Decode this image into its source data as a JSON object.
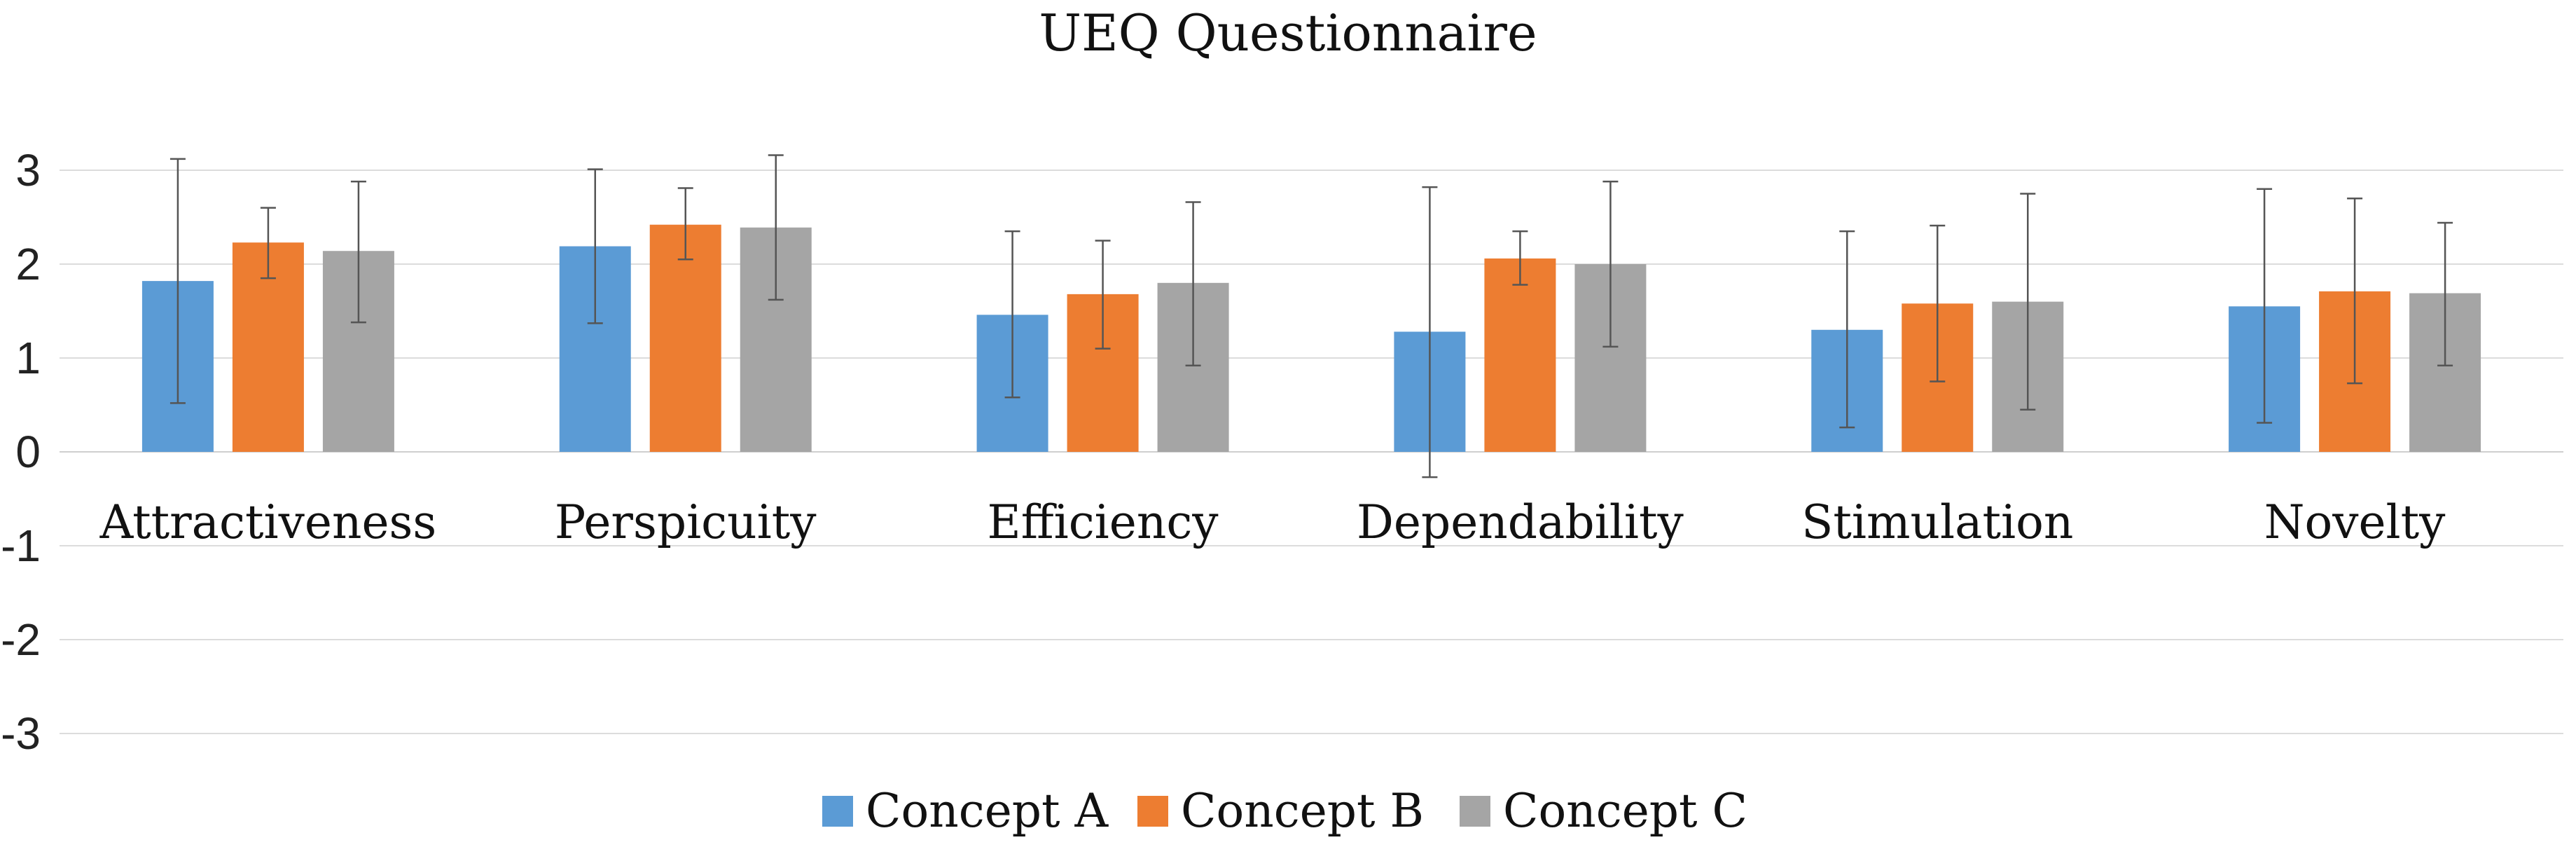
{
  "chart_data": {
    "type": "bar",
    "title": "UEQ Questionnaire",
    "xlabel": "",
    "ylabel": "",
    "ylim": [
      -3,
      3
    ],
    "yticks": [
      -3,
      -2,
      -1,
      0,
      1,
      2,
      3
    ],
    "grid": true,
    "legend_position": "bottom",
    "categories": [
      "Attractiveness",
      "Perspicuity",
      "Efficiency",
      "Dependability",
      "Stimulation",
      "Novelty"
    ],
    "series": [
      {
        "name": "Concept A",
        "color": "#5B9BD5",
        "values": [
          1.82,
          2.19,
          1.46,
          1.28,
          1.3,
          1.55
        ],
        "error_low": [
          0.52,
          1.37,
          0.58,
          -0.27,
          0.26,
          0.31
        ],
        "error_high": [
          3.12,
          3.01,
          2.35,
          2.82,
          2.35,
          2.8
        ]
      },
      {
        "name": "Concept B",
        "color": "#ED7D31",
        "values": [
          2.23,
          2.42,
          1.68,
          2.06,
          1.58,
          1.71
        ],
        "error_low": [
          1.85,
          2.05,
          1.1,
          1.78,
          0.75,
          0.73
        ],
        "error_high": [
          2.6,
          2.81,
          2.25,
          2.35,
          2.41,
          2.7
        ]
      },
      {
        "name": "Concept C",
        "color": "#A5A5A5",
        "values": [
          2.14,
          2.39,
          1.8,
          2.0,
          1.6,
          1.69
        ],
        "error_low": [
          1.38,
          1.62,
          0.92,
          1.12,
          0.45,
          0.92
        ],
        "error_high": [
          2.88,
          3.16,
          2.66,
          2.88,
          2.75,
          2.44
        ]
      }
    ]
  }
}
